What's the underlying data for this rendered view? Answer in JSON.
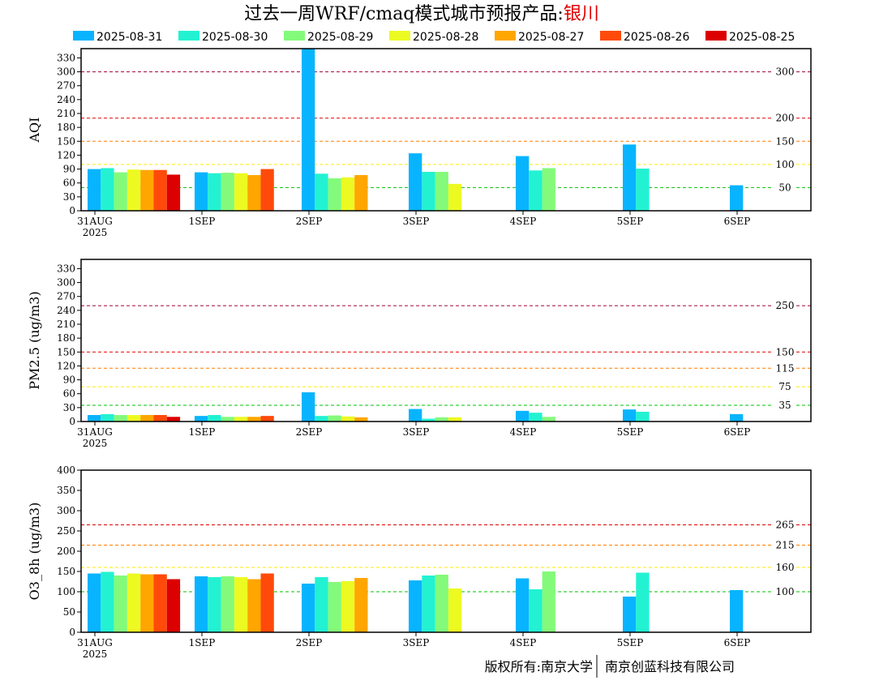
{
  "title": {
    "prefix": "过去一周WRF/cmaq模式城市预报产品:",
    "city": "银川"
  },
  "copyright": {
    "left": "版权所有:南京大学",
    "right": "南京创蓝科技有限公司"
  },
  "colors": {
    "2025-08-31": "#08b4ff",
    "2025-08-30": "#22f2d2",
    "2025-08-29": "#84fa7a",
    "2025-08-28": "#ecfa22",
    "2025-08-27": "#ffa600",
    "2025-08-26": "#ff4a0a",
    "2025-08-25": "#dc0000"
  },
  "chart_data": [
    {
      "type": "bar",
      "ylabel": "AQI",
      "ylim": [
        0,
        350
      ],
      "yticks": [
        0,
        30,
        60,
        90,
        120,
        150,
        180,
        210,
        240,
        270,
        300,
        330
      ],
      "x_tick_labels": [
        "31AUG",
        "1SEP",
        "2SEP",
        "3SEP",
        "4SEP",
        "5SEP",
        "6SEP"
      ],
      "x_year_label": "2025",
      "thresholds": [
        {
          "value": 300,
          "label": "300",
          "color": "#a0003c"
        },
        {
          "value": 200,
          "label": "200",
          "color": "#e00000"
        },
        {
          "value": 150,
          "label": "150",
          "color": "#ff7e00"
        },
        {
          "value": 100,
          "label": "100",
          "color": "#ffea00"
        },
        {
          "value": 50,
          "label": "50",
          "color": "#00c000"
        }
      ],
      "series": [
        {
          "name": "2025-08-31",
          "values": [
            90,
            83,
            350,
            124,
            118,
            143,
            55
          ]
        },
        {
          "name": "2025-08-30",
          "values": [
            92,
            81,
            80,
            84,
            87,
            91,
            null
          ]
        },
        {
          "name": "2025-08-29",
          "values": [
            83,
            82,
            70,
            84,
            92,
            null,
            null
          ]
        },
        {
          "name": "2025-08-28",
          "values": [
            89,
            81,
            72,
            58,
            null,
            null,
            null
          ]
        },
        {
          "name": "2025-08-27",
          "values": [
            88,
            77,
            77,
            null,
            null,
            null,
            null
          ]
        },
        {
          "name": "2025-08-26",
          "values": [
            88,
            90,
            null,
            null,
            null,
            null,
            null
          ]
        },
        {
          "name": "2025-08-25",
          "values": [
            78,
            null,
            null,
            null,
            null,
            null,
            null
          ]
        }
      ]
    },
    {
      "type": "bar",
      "ylabel": "PM2.5 (ug/m3)",
      "ylim": [
        0,
        350
      ],
      "yticks": [
        0,
        30,
        60,
        90,
        120,
        150,
        180,
        210,
        240,
        270,
        300,
        330
      ],
      "x_tick_labels": [
        "31AUG",
        "1SEP",
        "2SEP",
        "3SEP",
        "4SEP",
        "5SEP",
        "6SEP"
      ],
      "x_year_label": "2025",
      "thresholds": [
        {
          "value": 250,
          "label": "250",
          "color": "#a0003c"
        },
        {
          "value": 150,
          "label": "150",
          "color": "#e00000"
        },
        {
          "value": 115,
          "label": "115",
          "color": "#ff7e00"
        },
        {
          "value": 75,
          "label": "75",
          "color": "#ffea00"
        },
        {
          "value": 35,
          "label": "35",
          "color": "#00c000"
        }
      ],
      "series": [
        {
          "name": "2025-08-31",
          "values": [
            14,
            12,
            63,
            27,
            23,
            26,
            16
          ]
        },
        {
          "name": "2025-08-30",
          "values": [
            16,
            14,
            12,
            6,
            19,
            21,
            null
          ]
        },
        {
          "name": "2025-08-29",
          "values": [
            14,
            10,
            13,
            9,
            10,
            null,
            null
          ]
        },
        {
          "name": "2025-08-28",
          "values": [
            14,
            10,
            11,
            9,
            null,
            null,
            null
          ]
        },
        {
          "name": "2025-08-27",
          "values": [
            14,
            10,
            9,
            null,
            null,
            null,
            null
          ]
        },
        {
          "name": "2025-08-26",
          "values": [
            14,
            12,
            null,
            null,
            null,
            null,
            null
          ]
        },
        {
          "name": "2025-08-25",
          "values": [
            10,
            null,
            null,
            null,
            null,
            null,
            null
          ]
        }
      ]
    },
    {
      "type": "bar",
      "ylabel": "O3_8h (ug/m3)",
      "ylim": [
        0,
        400
      ],
      "yticks": [
        0,
        50,
        100,
        150,
        200,
        250,
        300,
        350,
        400
      ],
      "x_tick_labels": [
        "31AUG",
        "1SEP",
        "2SEP",
        "3SEP",
        "4SEP",
        "5SEP",
        "6SEP"
      ],
      "x_year_label": "2025",
      "thresholds": [
        {
          "value": 265,
          "label": "265",
          "color": "#e00000"
        },
        {
          "value": 215,
          "label": "215",
          "color": "#ff7e00"
        },
        {
          "value": 160,
          "label": "160",
          "color": "#ffea00"
        },
        {
          "value": 100,
          "label": "100",
          "color": "#00c000"
        }
      ],
      "series": [
        {
          "name": "2025-08-31",
          "values": [
            145,
            138,
            120,
            128,
            133,
            88,
            104
          ]
        },
        {
          "name": "2025-08-30",
          "values": [
            149,
            136,
            136,
            140,
            106,
            147,
            null
          ]
        },
        {
          "name": "2025-08-29",
          "values": [
            140,
            138,
            124,
            142,
            150,
            null,
            null
          ]
        },
        {
          "name": "2025-08-28",
          "values": [
            145,
            136,
            126,
            108,
            null,
            null,
            null
          ]
        },
        {
          "name": "2025-08-27",
          "values": [
            143,
            131,
            134,
            null,
            null,
            null,
            null
          ]
        },
        {
          "name": "2025-08-26",
          "values": [
            143,
            145,
            null,
            null,
            null,
            null,
            null
          ]
        },
        {
          "name": "2025-08-25",
          "values": [
            131,
            null,
            null,
            null,
            null,
            null,
            null
          ]
        }
      ]
    }
  ]
}
